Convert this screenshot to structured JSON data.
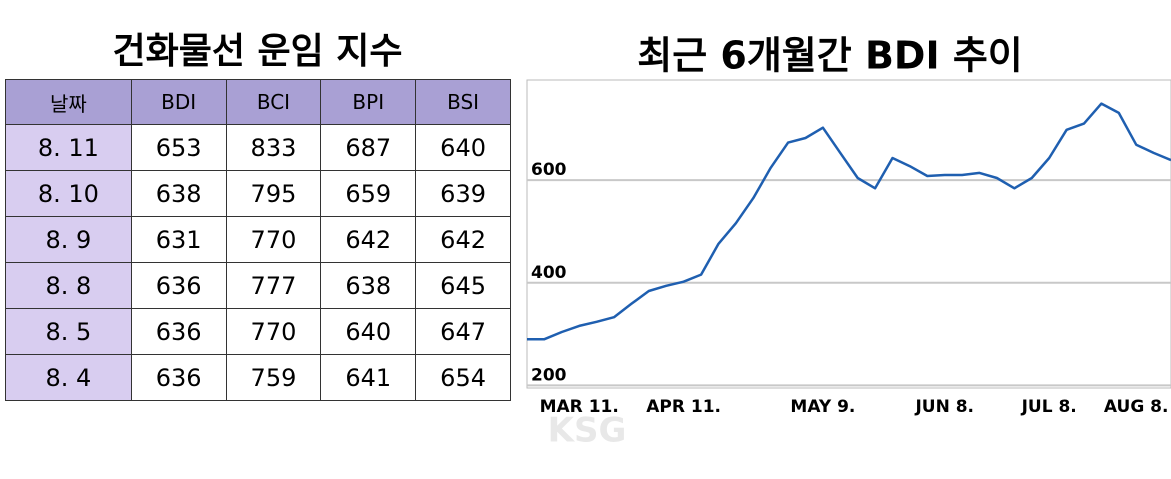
{
  "table": {
    "title": "건화물선 운임 지수",
    "header": [
      "날짜",
      "BDI",
      "BCI",
      "BPI",
      "BSI"
    ],
    "rows": [
      [
        "8. 11",
        653,
        833,
        687,
        640
      ],
      [
        "8. 10",
        638,
        795,
        659,
        639
      ],
      [
        "8. 9",
        631,
        770,
        642,
        642
      ],
      [
        "8. 8",
        636,
        777,
        638,
        645
      ],
      [
        "8. 5",
        636,
        770,
        640,
        647
      ],
      [
        "8. 4",
        636,
        759,
        641,
        654
      ]
    ]
  },
  "chart_data": {
    "type": "line",
    "title": "최근 6개월간 BDI 추이",
    "categories": [
      null,
      null,
      null,
      "MAR 11.",
      null,
      null,
      null,
      null,
      null,
      "APR 11.",
      null,
      null,
      null,
      null,
      null,
      null,
      null,
      "MAY 9.",
      null,
      null,
      null,
      null,
      null,
      null,
      "JUN 8.",
      null,
      null,
      null,
      null,
      null,
      "JUL 8.",
      null,
      null,
      null,
      null,
      "AUG 8.",
      null,
      null
    ],
    "series": [
      {
        "color": "#1f5fb0",
        "values": [
          290,
          290,
          304,
          316,
          324,
          333,
          359,
          384,
          394,
          402,
          416,
          476,
          516,
          565,
          624,
          673,
          682,
          702,
          653,
          604,
          584,
          643,
          627,
          608,
          610,
          610,
          614,
          604,
          584,
          604,
          643,
          698,
          710,
          749,
          731,
          669,
          653,
          639
        ]
      }
    ],
    "ylim": [
      195,
      795
    ],
    "yticks": [
      200,
      400,
      600
    ],
    "grid": true
  },
  "watermark": "KSG"
}
